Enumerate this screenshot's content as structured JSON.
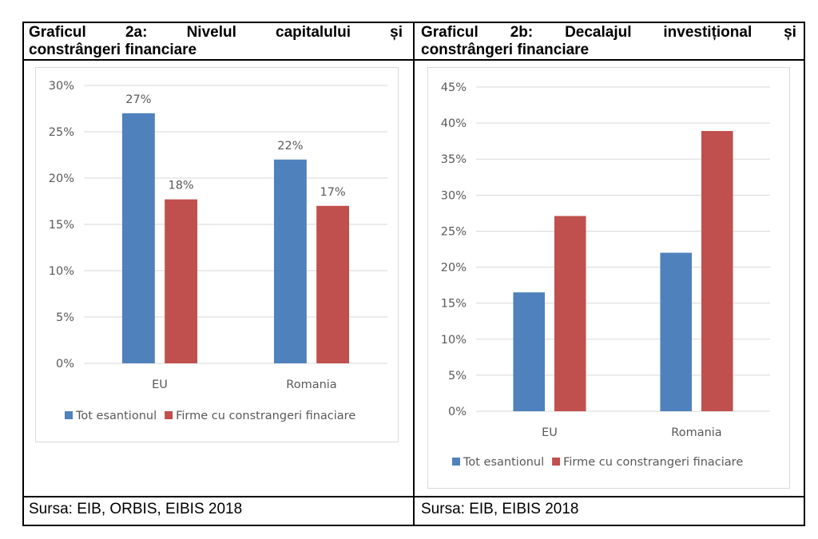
{
  "panels": [
    {
      "title_words": [
        "Graficul",
        "2a:",
        "Nivelul",
        "capitalului",
        "și"
      ],
      "title_line2": "constrângeri financiare",
      "source": "Sursa:  EIB, ORBIS, EIBIS 2018"
    },
    {
      "title_words": [
        "Graficul",
        "2b:",
        "Decalajul",
        "investițional",
        "și"
      ],
      "title_line2": "constrângeri financiare",
      "source": "Sursa:  EIB, EIBIS 2018"
    }
  ],
  "colors": {
    "series1": "#4F81BD",
    "series2": "#C0504D",
    "grid": "#D9D9D9",
    "text": "#595959"
  },
  "chart_data": [
    {
      "type": "bar",
      "categories": [
        "EU",
        "Romania"
      ],
      "series": [
        {
          "name": "Tot esantionul",
          "values": [
            27,
            22
          ],
          "labels": [
            "27%",
            "22%"
          ]
        },
        {
          "name": "Firme cu constrangeri finaciare",
          "values": [
            17.7,
            17
          ],
          "labels": [
            "18%",
            "17%"
          ]
        }
      ],
      "ylim": [
        0,
        30
      ],
      "yticks": [
        "0%",
        "5%",
        "10%",
        "15%",
        "20%",
        "25%",
        "30%"
      ],
      "grid": true,
      "legend": "bottom"
    },
    {
      "type": "bar",
      "categories": [
        "EU",
        "Romania"
      ],
      "series": [
        {
          "name": "Tot esantionul",
          "values": [
            16.5,
            22
          ]
        },
        {
          "name": "Firme cu constrangeri finaciare",
          "values": [
            27.1,
            38.9
          ]
        }
      ],
      "ylim": [
        0,
        45
      ],
      "yticks": [
        "0%",
        "5%",
        "10%",
        "15%",
        "20%",
        "25%",
        "30%",
        "35%",
        "40%",
        "45%"
      ],
      "grid": true,
      "legend": "bottom"
    }
  ]
}
